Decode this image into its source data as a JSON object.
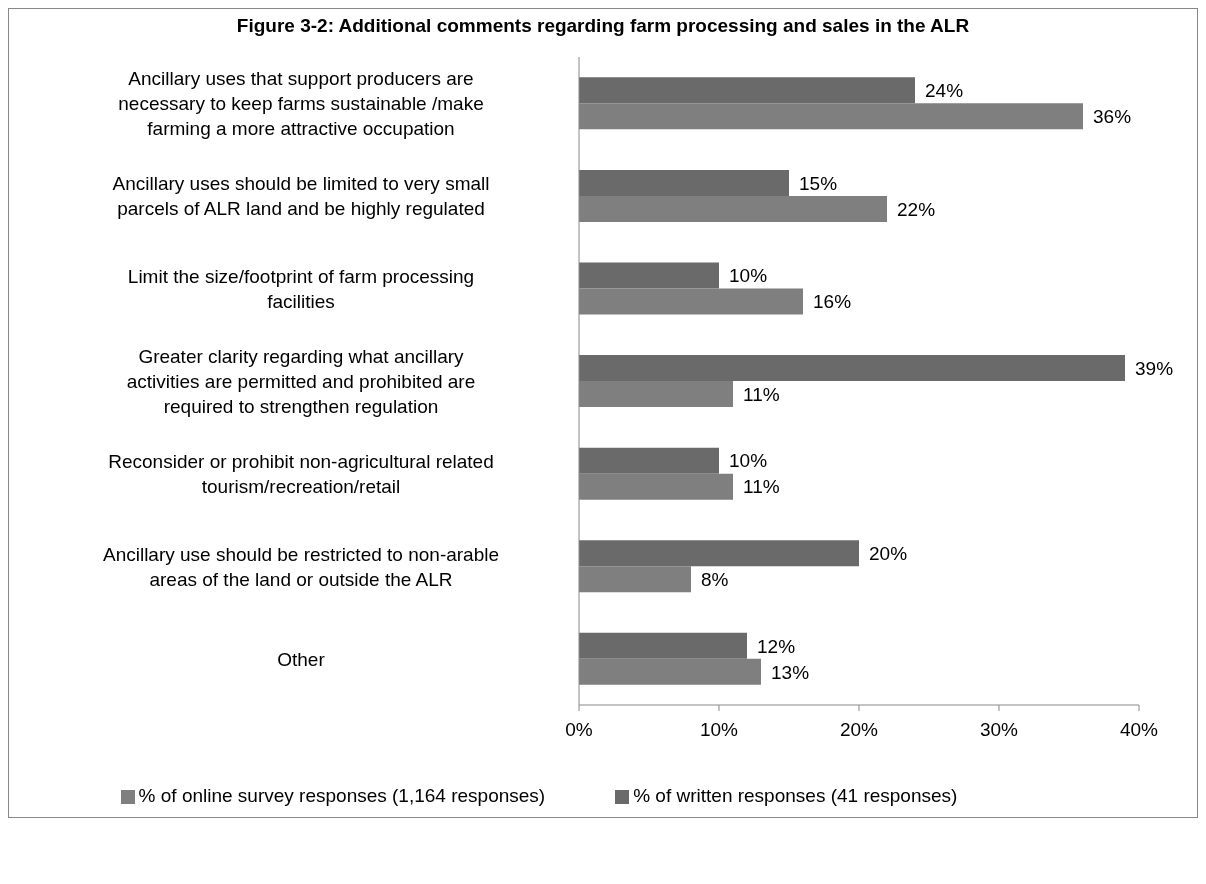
{
  "chart_data": {
    "type": "bar",
    "orientation": "horizontal",
    "title": "Figure 3-2: Additional comments regarding farm processing and sales in the ALR",
    "categories": [
      "Ancillary uses that support producers are necessary to keep farms sustainable /make farming a more attractive occupation",
      "Ancillary uses should be limited to very small parcels of ALR land and be highly regulated",
      "Limit the size/footprint of farm processing facilities",
      "Greater clarity regarding what ancillary activities are permitted and prohibited are required to strengthen regulation",
      "Reconsider or prohibit non-agricultural related tourism/recreation/retail",
      "Ancillary use should be restricted to non-arable areas of the land or outside the ALR",
      "Other"
    ],
    "series": [
      {
        "name": "% of written responses (41 responses)",
        "color": "#6a6a6a",
        "values": [
          24,
          15,
          10,
          39,
          10,
          20,
          12
        ],
        "value_labels": [
          "24%",
          "15%",
          "10%",
          "39%",
          "10%",
          "20%",
          "12%"
        ]
      },
      {
        "name": "% of online survey responses (1,164 responses)",
        "color": "#7f7f7f",
        "values": [
          36,
          22,
          16,
          11,
          11,
          8,
          13
        ],
        "value_labels": [
          "36%",
          "22%",
          "16%",
          "11%",
          "11%",
          "8%",
          "13%"
        ]
      }
    ],
    "xlim": [
      0,
      40
    ],
    "xticks": [
      {
        "value": 0,
        "label": "0%"
      },
      {
        "value": 10,
        "label": "10%"
      },
      {
        "value": 20,
        "label": "20%"
      },
      {
        "value": 30,
        "label": "30%"
      },
      {
        "value": 40,
        "label": "40%"
      }
    ],
    "grid": false,
    "legend": "bottom"
  }
}
